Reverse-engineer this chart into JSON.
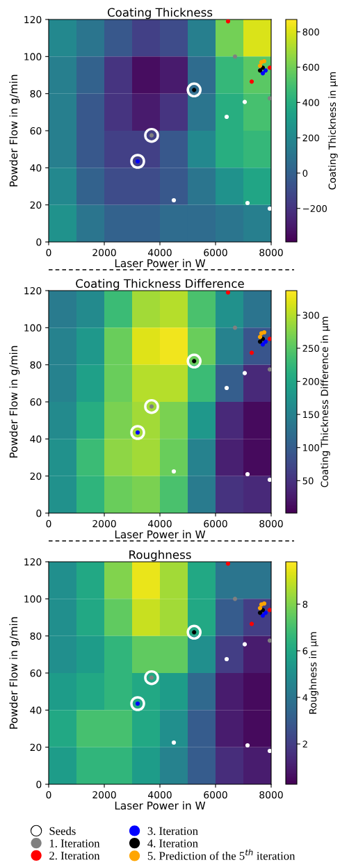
{
  "chart_data": [
    {
      "type": "heatmap",
      "title": "Coating Thickness",
      "xlabel": "Laser Power in W",
      "ylabel": "Powder Flow in g/min",
      "clabel": "Coating Thickness in µm",
      "xlim": [
        0,
        8000
      ],
      "ylim": [
        0,
        120
      ],
      "xticks": [
        0,
        2000,
        4000,
        6000,
        8000
      ],
      "yticks": [
        0,
        20,
        40,
        60,
        80,
        100,
        120
      ],
      "clim": [
        -390,
        870
      ],
      "cticks": [
        {
          "value": -200,
          "label": "−200"
        },
        0,
        200,
        400,
        600,
        800
      ],
      "marker": "circle",
      "grid": false,
      "x": [
        500,
        1500,
        2500,
        3500,
        4500,
        5500,
        6500,
        7500
      ],
      "y": [
        110,
        90,
        70,
        50,
        30,
        10
      ],
      "cells": [
        [
          200,
          100,
          -50,
          -150,
          -100,
          150,
          600,
          800
        ],
        [
          150,
          0,
          -200,
          -350,
          -300,
          50,
          450,
          550
        ],
        [
          150,
          -50,
          -200,
          -300,
          -200,
          100,
          400,
          500
        ],
        [
          150,
          -50,
          -150,
          -150,
          -50,
          200,
          400,
          450
        ],
        [
          200,
          0,
          -100,
          -100,
          -50,
          100,
          250,
          350
        ],
        [
          250,
          100,
          0,
          0,
          50,
          50,
          100,
          150
        ]
      ],
      "series": [
        {
          "type": "scatter",
          "color": "#ffffff",
          "x": [
            4500,
            6400,
            7050,
            7150,
            7950
          ],
          "values": [
            22.5,
            67.5,
            75.5,
            21,
            18
          ]
        },
        {
          "type": "scatter",
          "color": "#808080",
          "x": [
            3700,
            6700,
            7950
          ],
          "values": [
            57.5,
            100,
            77.5
          ]
        },
        {
          "type": "scatter",
          "color": "#ff0000",
          "x": [
            6450,
            7300,
            7950
          ],
          "values": [
            119,
            86.5,
            94
          ]
        },
        {
          "type": "scatter",
          "color": "#0000ff",
          "x": [
            3200,
            7700,
            7800
          ],
          "values": [
            43.5,
            91,
            92.5
          ]
        },
        {
          "type": "scatter",
          "color": "#000000",
          "x": [
            5230,
            7600,
            7700
          ],
          "values": [
            82,
            92.5,
            94
          ]
        },
        {
          "type": "scatter",
          "color": "#ffa500",
          "x": [
            7600,
            7650,
            7750
          ],
          "values": [
            95,
            97,
            97.5
          ]
        },
        {
          "type": "bubble",
          "color": "#ffffff",
          "sizes": [
            1,
            1,
            1
          ],
          "x": [
            3200,
            3700,
            5230
          ],
          "values": [
            43.5,
            57.5,
            82
          ]
        }
      ]
    },
    {
      "type": "heatmap",
      "title": "Coating Thickness Difference",
      "xlabel": "Laser Power in W",
      "ylabel": "Powder Flow in g/min",
      "clabel": "Coating Thickness Difference in µm",
      "xlim": [
        0,
        8000
      ],
      "ylim": [
        0,
        120
      ],
      "xticks": [
        0,
        2000,
        4000,
        6000,
        8000
      ],
      "yticks": [
        0,
        20,
        40,
        60,
        80,
        100,
        120
      ],
      "clim": [
        1,
        337
      ],
      "cticks": [
        50,
        100,
        150,
        200,
        250,
        300
      ],
      "marker": "circle",
      "grid": false,
      "x": [
        500,
        1500,
        2500,
        3500,
        4500,
        5500,
        6500,
        7500
      ],
      "y": [
        110,
        90,
        70,
        50,
        30,
        10
      ],
      "cells": [
        [
          140,
          160,
          230,
          290,
          300,
          240,
          170,
          130
        ],
        [
          150,
          180,
          260,
          320,
          330,
          260,
          150,
          90
        ],
        [
          150,
          190,
          260,
          300,
          300,
          230,
          100,
          40
        ],
        [
          160,
          210,
          270,
          290,
          270,
          180,
          40,
          10
        ],
        [
          170,
          230,
          280,
          290,
          260,
          150,
          30,
          10
        ],
        [
          170,
          220,
          260,
          270,
          240,
          140,
          50,
          40
        ]
      ],
      "series": [
        {
          "type": "scatter",
          "color": "#ffffff",
          "x": [
            4500,
            6400,
            7050,
            7150,
            7950
          ],
          "values": [
            22.5,
            67.5,
            75.5,
            21,
            18
          ]
        },
        {
          "type": "scatter",
          "color": "#808080",
          "x": [
            3700,
            6700,
            7950
          ],
          "values": [
            57.5,
            100,
            77.5
          ]
        },
        {
          "type": "scatter",
          "color": "#ff0000",
          "x": [
            6450,
            7300,
            7950
          ],
          "values": [
            119,
            86.5,
            94
          ]
        },
        {
          "type": "scatter",
          "color": "#0000ff",
          "x": [
            3200,
            7700,
            7800
          ],
          "values": [
            43.5,
            91,
            92.5
          ]
        },
        {
          "type": "scatter",
          "color": "#000000",
          "x": [
            5230,
            7600,
            7700
          ],
          "values": [
            82,
            92.5,
            94
          ]
        },
        {
          "type": "scatter",
          "color": "#ffa500",
          "x": [
            7600,
            7650,
            7750
          ],
          "values": [
            95,
            97,
            97.5
          ]
        },
        {
          "type": "bubble",
          "color": "#ffffff",
          "sizes": [
            1,
            1,
            1
          ],
          "x": [
            3200,
            3700,
            5230
          ],
          "values": [
            43.5,
            57.5,
            82
          ]
        }
      ]
    },
    {
      "type": "heatmap",
      "title": "Roughness",
      "xlabel": "Laser Power in W",
      "ylabel": "Powder Flow in g/min",
      "clabel": "Roughness in µm",
      "xlim": [
        0,
        8000
      ],
      "ylim": [
        0,
        120
      ],
      "xticks": [
        0,
        2000,
        4000,
        6000,
        8000
      ],
      "yticks": [
        0,
        20,
        40,
        60,
        80,
        100,
        120
      ],
      "clim": [
        0.27,
        9.82
      ],
      "cticks": [
        2,
        4,
        6,
        8
      ],
      "marker": "circle",
      "grid": false,
      "legend": "bottom",
      "x": [
        500,
        1500,
        2500,
        3500,
        4500,
        5500,
        6500,
        7500
      ],
      "y": [
        110,
        90,
        70,
        50,
        30,
        10
      ],
      "cells": [
        [
          5,
          6,
          8,
          9.5,
          8.5,
          6,
          4,
          4
        ],
        [
          5,
          6,
          7.5,
          9,
          8.5,
          6,
          3,
          2
        ],
        [
          5,
          5.5,
          6.5,
          7.5,
          7.5,
          5,
          2,
          1
        ],
        [
          5.5,
          6,
          6.5,
          6,
          5.5,
          3.5,
          1,
          0.5
        ],
        [
          6,
          7,
          7,
          6,
          5,
          3,
          1,
          0.5
        ],
        [
          5.5,
          6.5,
          6.5,
          5.5,
          4.5,
          3,
          1.5,
          1
        ]
      ],
      "series": [
        {
          "type": "scatter",
          "color": "#ffffff",
          "x": [
            4500,
            6400,
            7050,
            7150,
            7950
          ],
          "values": [
            22.5,
            67.5,
            75.5,
            21,
            18
          ]
        },
        {
          "type": "scatter",
          "name": "1. Iteration",
          "color": "#808080",
          "x": [
            3700,
            6700,
            7950
          ],
          "values": [
            57.5,
            100,
            77.5
          ]
        },
        {
          "type": "scatter",
          "name": "2. Iteration",
          "color": "#ff0000",
          "x": [
            6450,
            7300,
            7950
          ],
          "values": [
            119,
            86.5,
            94
          ]
        },
        {
          "type": "scatter",
          "name": "3. Iteration",
          "color": "#0000ff",
          "x": [
            3200,
            7700,
            7800
          ],
          "values": [
            43.5,
            91,
            92.5
          ]
        },
        {
          "type": "scatter",
          "name": "4. Iteration",
          "color": "#000000",
          "x": [
            5230,
            7600,
            7700
          ],
          "values": [
            82,
            92.5,
            94
          ]
        },
        {
          "type": "scatter",
          "name": "5. Prediction of the 5$^{th}$ iteration",
          "color": "#ffa500",
          "x": [
            7600,
            7650,
            7750
          ],
          "values": [
            95,
            97,
            97.5
          ]
        },
        {
          "type": "bubble",
          "name": "Seeds",
          "color": "#ffffff",
          "sizes": [
            1,
            1,
            1
          ],
          "x": [
            3200,
            3700,
            5230
          ],
          "values": [
            43.5,
            57.5,
            82
          ]
        }
      ]
    }
  ]
}
